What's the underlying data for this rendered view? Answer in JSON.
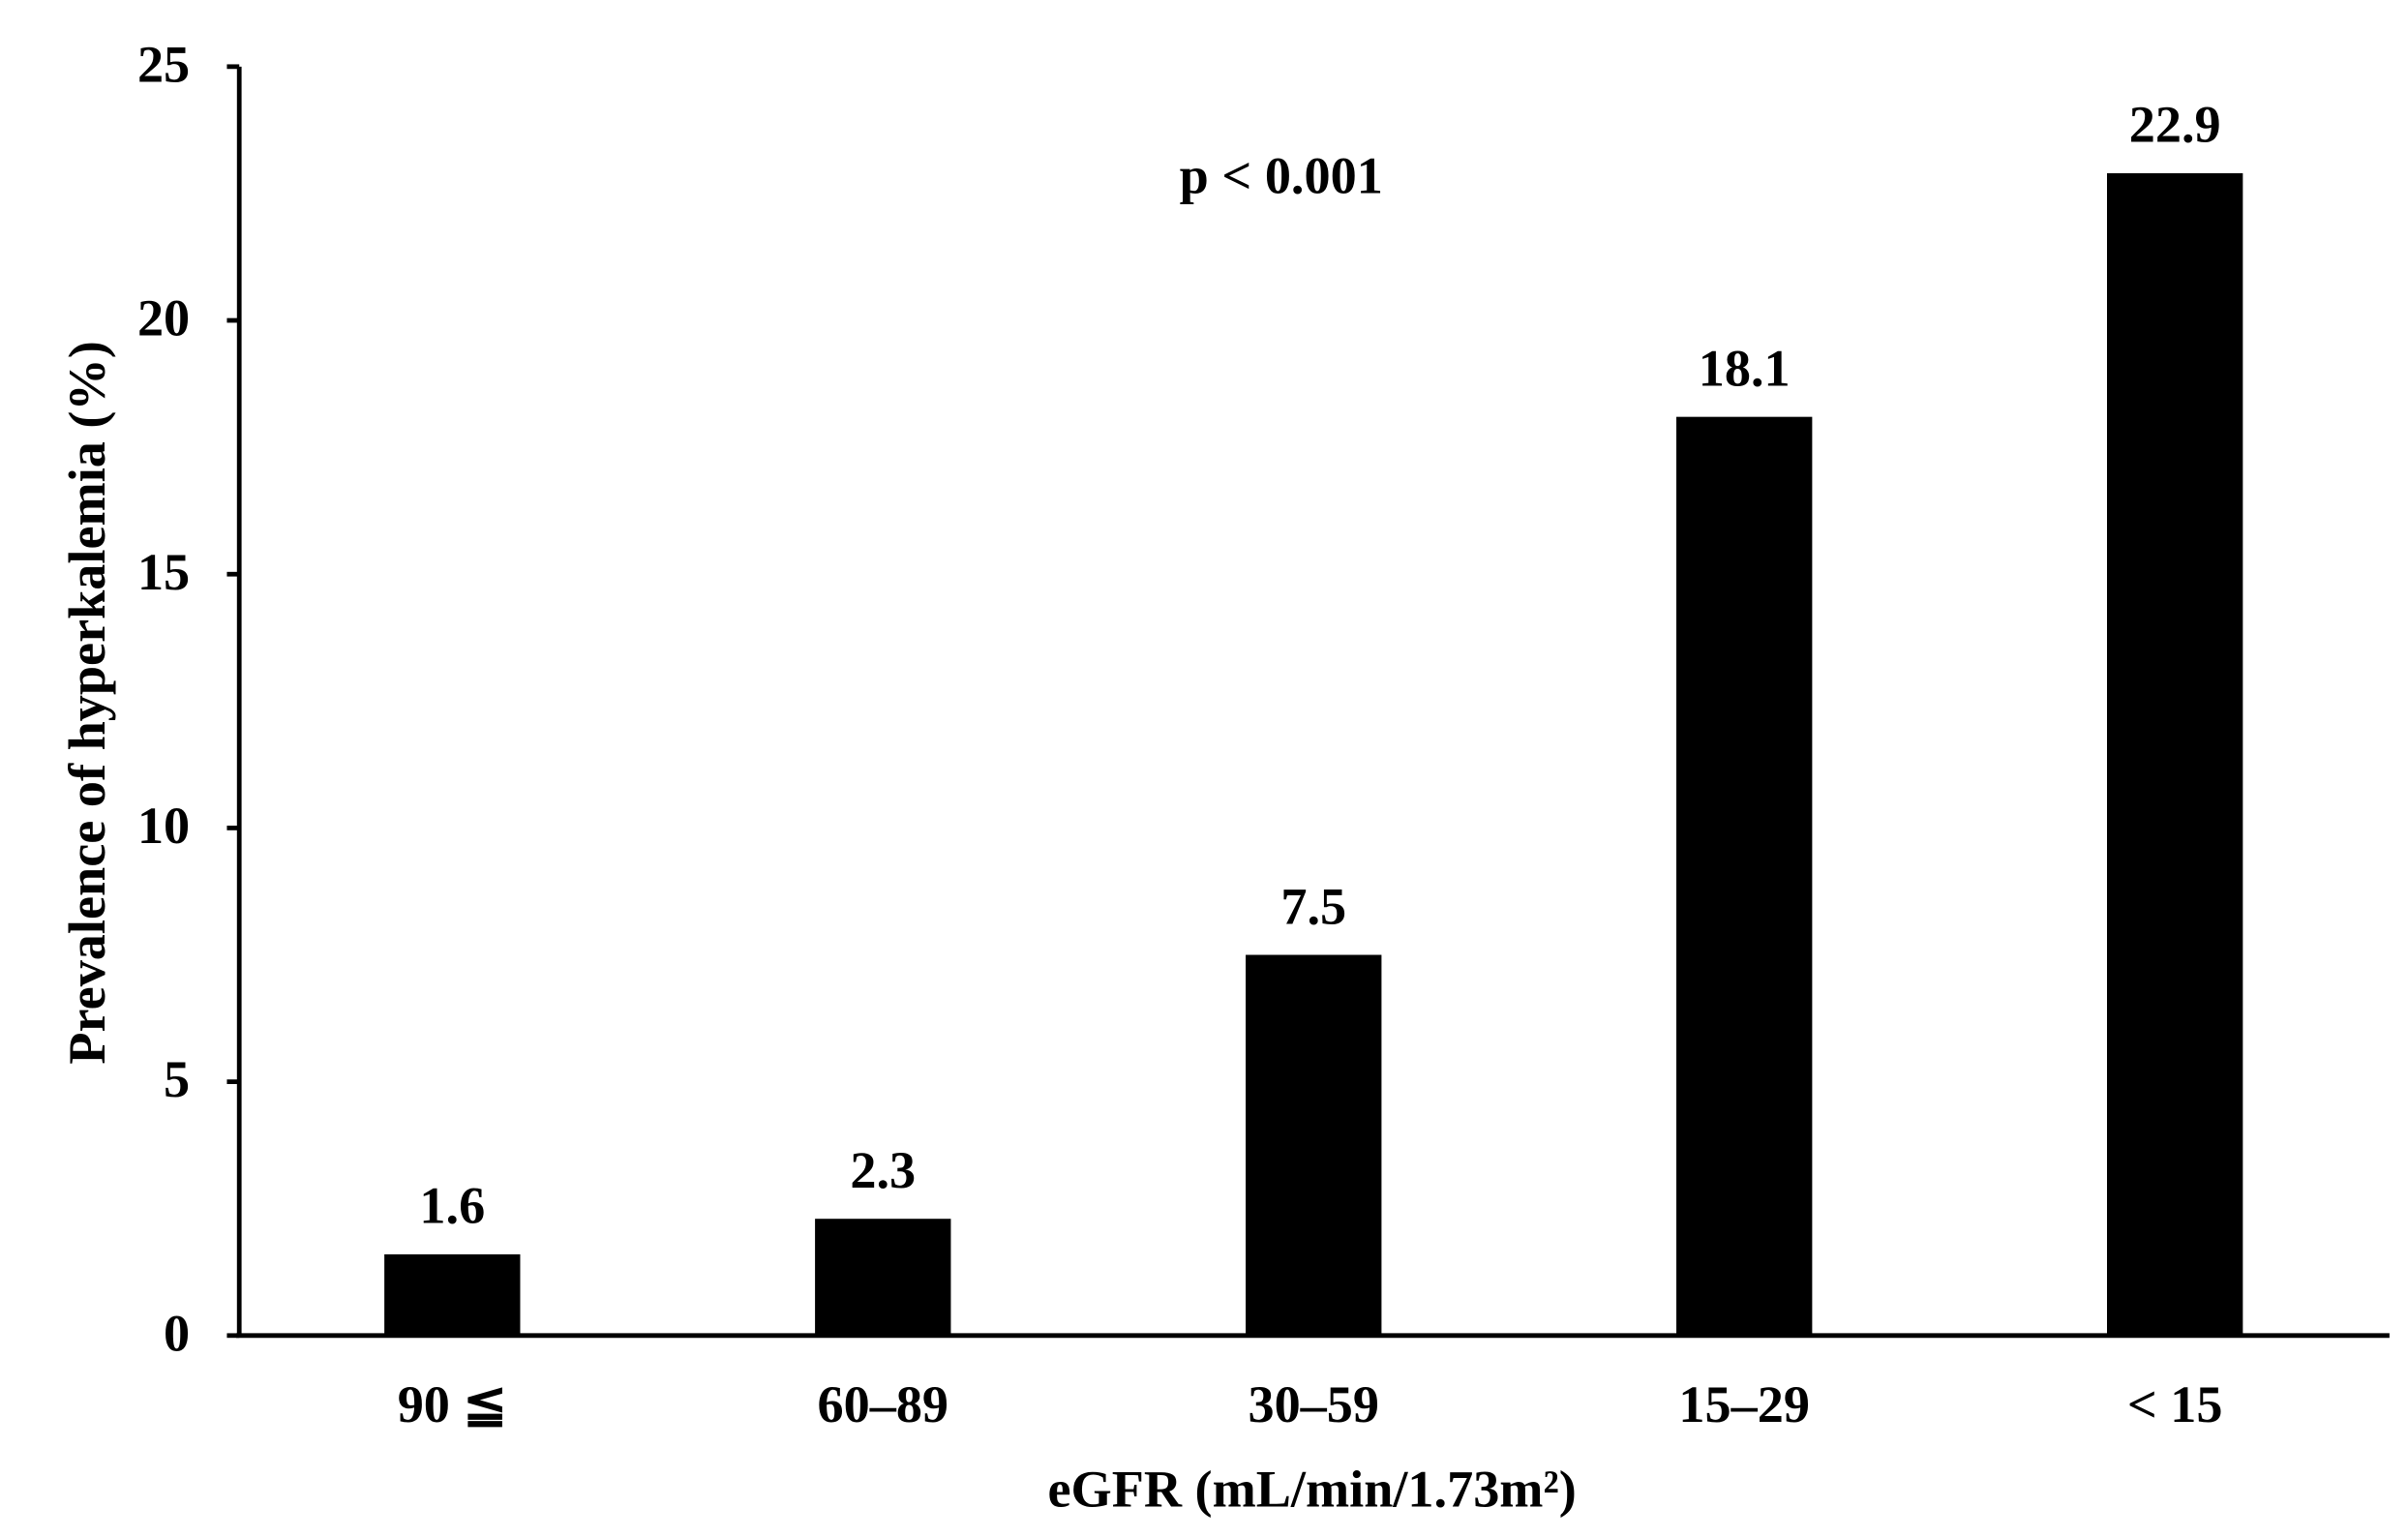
{
  "chart_data": {
    "type": "bar",
    "y_label": "Prevalence of hyperkalemia (%)",
    "x_label": "eGFR (mL/min/1.73m²)",
    "annotation": "p < 0.001",
    "categories": [
      "90 ≦",
      "60–89",
      "30–59",
      "15–29",
      "< 15"
    ],
    "values": [
      1.6,
      2.3,
      7.5,
      18.1,
      22.9
    ],
    "color": "#000000",
    "ylim": [
      0,
      25
    ],
    "yticks": [
      0,
      5,
      10,
      15,
      20,
      25
    ],
    "grid": false
  }
}
